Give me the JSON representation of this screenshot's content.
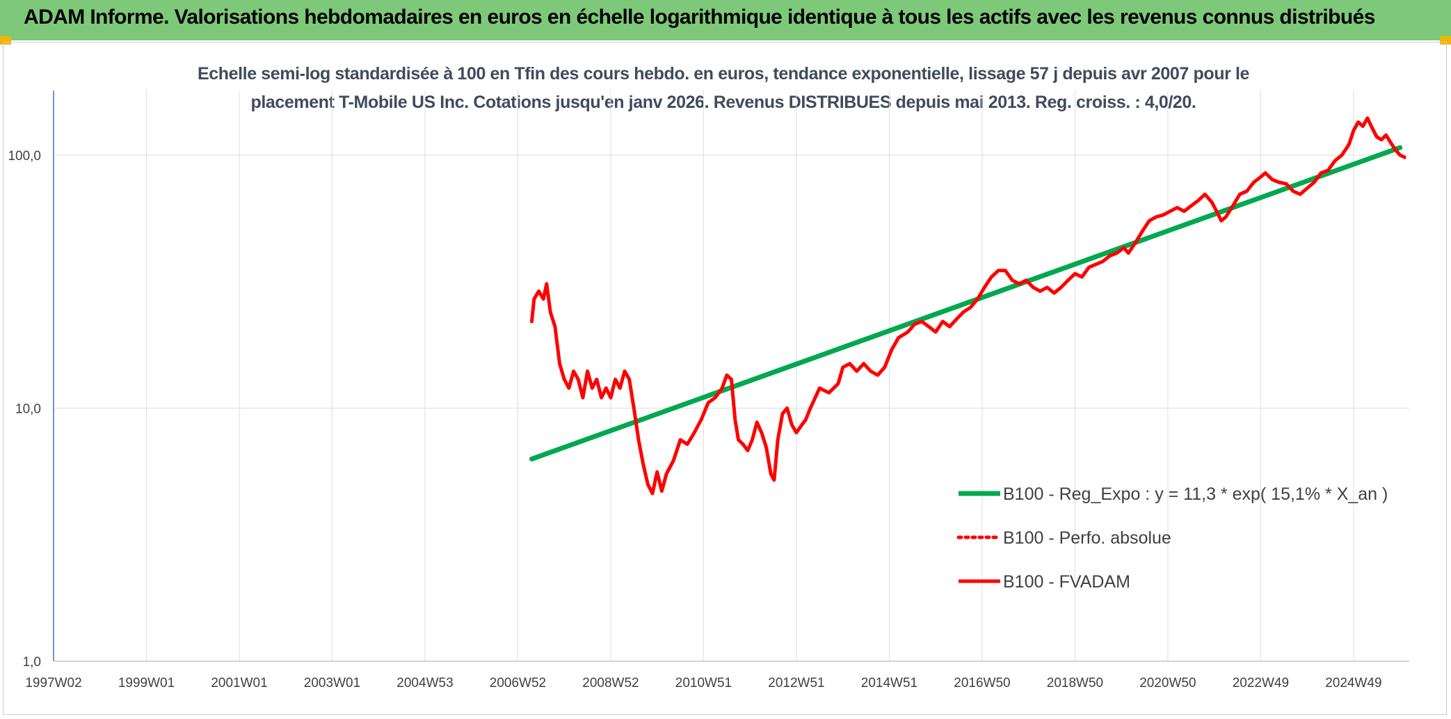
{
  "banner": {
    "title": "ADAM Informe. Valorisations hebdomadaires en euros en échelle logarithmique identique à tous les actifs avec les revenus connus distribués",
    "color": "#7ec879"
  },
  "chart_data": {
    "type": "line",
    "title_line1": "Echelle semi-log standardisée à 100 en Tfin des cours hebdo. en euros, tendance exponentielle, lissage 57 j depuis avr 2007 pour le",
    "title_line2": "placement T-Mobile US Inc. Cotations jusqu'en janv 2026. Revenus DISTRIBUES depuis mai 2013. Reg. croiss. : 4,0/20.",
    "y_scale": "log",
    "ylim": [
      1,
      180
    ],
    "y_ticks": [
      "1,0",
      "10,0",
      "100,0"
    ],
    "xlim": [
      1997.0,
      2026.2
    ],
    "x_ticks": [
      {
        "x": 1997.0,
        "label": "1997W02"
      },
      {
        "x": 1999.0,
        "label": "1999W01"
      },
      {
        "x": 2001.0,
        "label": "2001W01"
      },
      {
        "x": 2003.0,
        "label": "2003W01"
      },
      {
        "x": 2005.0,
        "label": "2004W53"
      },
      {
        "x": 2007.0,
        "label": "2006W52"
      },
      {
        "x": 2009.0,
        "label": "2008W52"
      },
      {
        "x": 2011.0,
        "label": "2010W51"
      },
      {
        "x": 2013.0,
        "label": "2012W51"
      },
      {
        "x": 2015.0,
        "label": "2014W51"
      },
      {
        "x": 2017.0,
        "label": "2016W50"
      },
      {
        "x": 2019.0,
        "label": "2018W50"
      },
      {
        "x": 2021.0,
        "label": "2020W50"
      },
      {
        "x": 2023.0,
        "label": "2022W49"
      },
      {
        "x": 2025.0,
        "label": "2024W49"
      }
    ],
    "grid": true,
    "legend_position": "right",
    "series": [
      {
        "name": "B100 - Reg_Expo : y = 11,3 * exp( 15,1% *  X_an )",
        "color": "#00a84f",
        "style": "solid",
        "points": [
          [
            2007.3,
            6.3
          ],
          [
            2026.0,
            107
          ]
        ]
      },
      {
        "name": "B100 - Perfo. absolue",
        "color": "#ff0000",
        "style": "dotted",
        "points": []
      },
      {
        "name": "B100 - FVADAM",
        "color": "#ff0000",
        "style": "solid",
        "points": [
          [
            2007.3,
            22
          ],
          [
            2007.35,
            27
          ],
          [
            2007.45,
            29
          ],
          [
            2007.55,
            27
          ],
          [
            2007.62,
            31
          ],
          [
            2007.7,
            24
          ],
          [
            2007.8,
            21
          ],
          [
            2007.9,
            15
          ],
          [
            2008.0,
            13
          ],
          [
            2008.1,
            12
          ],
          [
            2008.2,
            14
          ],
          [
            2008.3,
            13
          ],
          [
            2008.4,
            11
          ],
          [
            2008.5,
            14
          ],
          [
            2008.6,
            12
          ],
          [
            2008.7,
            13
          ],
          [
            2008.8,
            11
          ],
          [
            2008.9,
            12
          ],
          [
            2009.0,
            11
          ],
          [
            2009.1,
            13
          ],
          [
            2009.2,
            12
          ],
          [
            2009.3,
            14
          ],
          [
            2009.4,
            13
          ],
          [
            2009.5,
            10
          ],
          [
            2009.6,
            7.5
          ],
          [
            2009.7,
            6.0
          ],
          [
            2009.8,
            5.0
          ],
          [
            2009.9,
            4.6
          ],
          [
            2010.0,
            5.6
          ],
          [
            2010.1,
            4.7
          ],
          [
            2010.2,
            5.5
          ],
          [
            2010.35,
            6.2
          ],
          [
            2010.5,
            7.5
          ],
          [
            2010.65,
            7.2
          ],
          [
            2010.8,
            8.0
          ],
          [
            2010.95,
            9.0
          ],
          [
            2011.1,
            10.5
          ],
          [
            2011.25,
            11.0
          ],
          [
            2011.4,
            12.0
          ],
          [
            2011.5,
            13.5
          ],
          [
            2011.6,
            13.0
          ],
          [
            2011.68,
            9.0
          ],
          [
            2011.75,
            7.5
          ],
          [
            2011.85,
            7.2
          ],
          [
            2011.95,
            6.8
          ],
          [
            2012.05,
            7.5
          ],
          [
            2012.15,
            8.8
          ],
          [
            2012.25,
            8.0
          ],
          [
            2012.35,
            7.0
          ],
          [
            2012.45,
            5.5
          ],
          [
            2012.52,
            5.2
          ],
          [
            2012.6,
            7.5
          ],
          [
            2012.7,
            9.5
          ],
          [
            2012.8,
            10.0
          ],
          [
            2012.9,
            8.6
          ],
          [
            2013.0,
            8.0
          ],
          [
            2013.1,
            8.5
          ],
          [
            2013.2,
            9.0
          ],
          [
            2013.3,
            10.0
          ],
          [
            2013.5,
            12.0
          ],
          [
            2013.7,
            11.5
          ],
          [
            2013.9,
            12.5
          ],
          [
            2014.0,
            14.5
          ],
          [
            2014.15,
            15.0
          ],
          [
            2014.3,
            14.0
          ],
          [
            2014.45,
            15.0
          ],
          [
            2014.6,
            14.0
          ],
          [
            2014.75,
            13.5
          ],
          [
            2014.9,
            14.5
          ],
          [
            2015.05,
            17.0
          ],
          [
            2015.2,
            19.0
          ],
          [
            2015.4,
            20.0
          ],
          [
            2015.55,
            21.5
          ],
          [
            2015.7,
            22.0
          ],
          [
            2015.85,
            21.0
          ],
          [
            2016.0,
            20.0
          ],
          [
            2016.15,
            22.0
          ],
          [
            2016.3,
            21.0
          ],
          [
            2016.45,
            22.5
          ],
          [
            2016.6,
            24.0
          ],
          [
            2016.75,
            25.0
          ],
          [
            2016.9,
            27.0
          ],
          [
            2017.05,
            30.0
          ],
          [
            2017.2,
            33.0
          ],
          [
            2017.35,
            35.0
          ],
          [
            2017.5,
            35.0
          ],
          [
            2017.65,
            32.0
          ],
          [
            2017.8,
            31.0
          ],
          [
            2017.95,
            32.0
          ],
          [
            2018.1,
            30.0
          ],
          [
            2018.25,
            29.0
          ],
          [
            2018.4,
            30.0
          ],
          [
            2018.55,
            28.5
          ],
          [
            2018.7,
            30.0
          ],
          [
            2018.85,
            32.0
          ],
          [
            2019.0,
            34.0
          ],
          [
            2019.15,
            33.0
          ],
          [
            2019.3,
            36.0
          ],
          [
            2019.45,
            37.0
          ],
          [
            2019.6,
            38.0
          ],
          [
            2019.75,
            40.0
          ],
          [
            2019.9,
            41.0
          ],
          [
            2020.05,
            43.0
          ],
          [
            2020.15,
            41.0
          ],
          [
            2020.3,
            45.0
          ],
          [
            2020.45,
            50.0
          ],
          [
            2020.6,
            55.0
          ],
          [
            2020.75,
            57.0
          ],
          [
            2020.9,
            58.0
          ],
          [
            2021.05,
            60.0
          ],
          [
            2021.2,
            62.0
          ],
          [
            2021.35,
            60.0
          ],
          [
            2021.5,
            63.0
          ],
          [
            2021.65,
            66.0
          ],
          [
            2021.8,
            70.0
          ],
          [
            2021.95,
            65.0
          ],
          [
            2022.05,
            60.0
          ],
          [
            2022.15,
            55.0
          ],
          [
            2022.25,
            57.0
          ],
          [
            2022.4,
            63.0
          ],
          [
            2022.55,
            70.0
          ],
          [
            2022.7,
            72.0
          ],
          [
            2022.85,
            78.0
          ],
          [
            2023.0,
            82.0
          ],
          [
            2023.1,
            85.0
          ],
          [
            2023.25,
            80.0
          ],
          [
            2023.4,
            78.0
          ],
          [
            2023.55,
            77.0
          ],
          [
            2023.7,
            72.0
          ],
          [
            2023.85,
            70.0
          ],
          [
            2024.0,
            74.0
          ],
          [
            2024.15,
            78.0
          ],
          [
            2024.3,
            85.0
          ],
          [
            2024.45,
            87.0
          ],
          [
            2024.6,
            95.0
          ],
          [
            2024.75,
            100.0
          ],
          [
            2024.9,
            110.0
          ],
          [
            2025.0,
            125.0
          ],
          [
            2025.1,
            135.0
          ],
          [
            2025.2,
            130.0
          ],
          [
            2025.3,
            140.0
          ],
          [
            2025.4,
            128.0
          ],
          [
            2025.5,
            118.0
          ],
          [
            2025.6,
            115.0
          ],
          [
            2025.7,
            120.0
          ],
          [
            2025.8,
            112.0
          ],
          [
            2025.9,
            105.0
          ],
          [
            2026.0,
            100.0
          ],
          [
            2026.1,
            98.0
          ]
        ]
      }
    ]
  }
}
